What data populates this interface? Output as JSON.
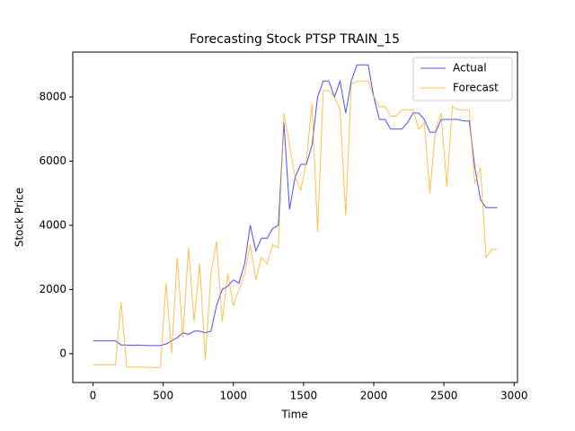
{
  "chart_data": {
    "type": "line",
    "title": "Forecasting Stock PTSP TRAIN_15",
    "x_label": "Time",
    "y_label": "Stock Price",
    "x": [
      0,
      40,
      80,
      120,
      160,
      200,
      240,
      280,
      320,
      360,
      400,
      440,
      480,
      520,
      560,
      600,
      640,
      680,
      720,
      760,
      800,
      840,
      880,
      920,
      960,
      1000,
      1040,
      1080,
      1120,
      1160,
      1200,
      1240,
      1280,
      1320,
      1360,
      1400,
      1440,
      1480,
      1520,
      1560,
      1600,
      1640,
      1680,
      1720,
      1760,
      1800,
      1840,
      1880,
      1920,
      1960,
      2000,
      2040,
      2080,
      2120,
      2160,
      2200,
      2240,
      2280,
      2320,
      2360,
      2400,
      2440,
      2480,
      2520,
      2560,
      2600,
      2640,
      2680,
      2720,
      2760,
      2800,
      2840,
      2880
    ],
    "series": [
      {
        "name": "Actual",
        "color": "#0000ff",
        "values": [
          400,
          400,
          400,
          400,
          400,
          270,
          270,
          260,
          270,
          260,
          250,
          250,
          250,
          300,
          400,
          500,
          650,
          600,
          700,
          700,
          650,
          700,
          1500,
          2000,
          2100,
          2300,
          2200,
          2800,
          4000,
          3200,
          3600,
          3600,
          3900,
          4000,
          7200,
          4500,
          5500,
          5900,
          5900,
          6500,
          8000,
          8500,
          8500,
          8000,
          8500,
          7500,
          8500,
          9000,
          9000,
          9000,
          8000,
          7300,
          7300,
          7000,
          7000,
          7000,
          7200,
          7500,
          7500,
          7300,
          6900,
          6900,
          7300,
          7300,
          7300,
          7300,
          7250,
          7250,
          5800,
          4800,
          4550,
          4550,
          4550
        ]
      },
      {
        "name": "Forecast",
        "color": "#ffa500",
        "values": [
          -350,
          -350,
          -350,
          -350,
          -350,
          1600,
          -420,
          -420,
          -420,
          -420,
          -430,
          -430,
          -430,
          2200,
          0,
          3000,
          500,
          3300,
          1000,
          2800,
          -200,
          2500,
          3500,
          1000,
          2500,
          1500,
          2000,
          2500,
          3400,
          2300,
          3000,
          2800,
          3400,
          3300,
          7500,
          6500,
          5500,
          5100,
          6000,
          7800,
          3800,
          8200,
          8200,
          8000,
          7600,
          4300,
          8400,
          8500,
          8500,
          8500,
          8000,
          7700,
          7700,
          7400,
          7400,
          7600,
          7600,
          7600,
          7000,
          7200,
          5000,
          7000,
          7500,
          5200,
          7700,
          7600,
          7600,
          7600,
          5300,
          5800,
          3000,
          3250,
          3250
        ]
      }
    ],
    "xlim": [
      -144,
      3024
    ],
    "ylim": [
      -900,
      9400
    ],
    "xticks": [
      0,
      500,
      1000,
      1500,
      2000,
      2500,
      3000
    ],
    "yticks": [
      0,
      2000,
      4000,
      6000,
      8000
    ],
    "legend": "upper right"
  }
}
